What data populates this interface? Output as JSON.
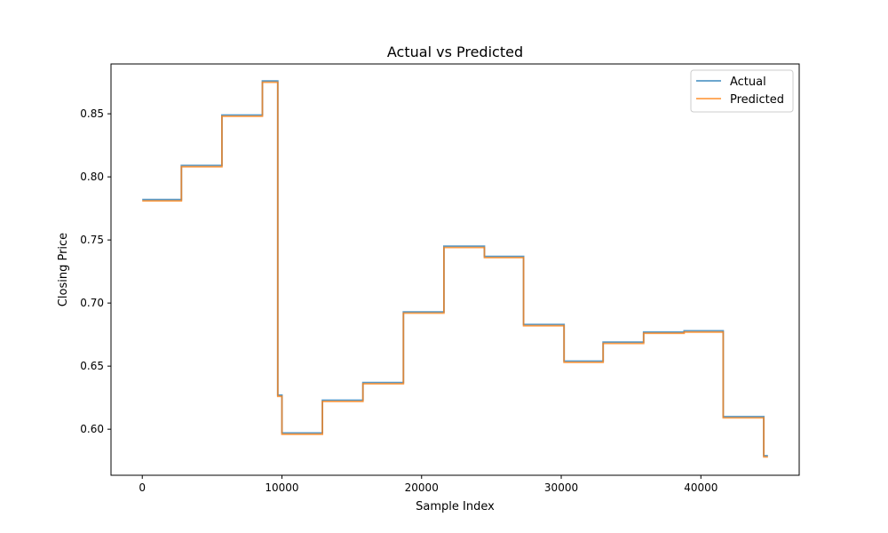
{
  "chart_data": {
    "type": "line",
    "title": "Actual vs Predicted",
    "xlabel": "Sample Index",
    "ylabel": "Closing Price",
    "xlim": [
      -2240,
      47040
    ],
    "ylim": [
      0.5635,
      0.8895
    ],
    "xticks": [
      0,
      10000,
      20000,
      30000,
      40000
    ],
    "xtick_labels": [
      "0",
      "10000",
      "20000",
      "30000",
      "40000"
    ],
    "yticks": [
      0.6,
      0.65,
      0.7,
      0.75,
      0.8,
      0.85
    ],
    "ytick_labels": [
      "0.60",
      "0.65",
      "0.70",
      "0.75",
      "0.80",
      "0.85"
    ],
    "grid": false,
    "legend_position": "top-right",
    "series": [
      {
        "name": "Actual",
        "color": "#1f77b4",
        "x": [
          0,
          2800,
          2800,
          5700,
          5700,
          8600,
          8600,
          9700,
          9700,
          10000,
          10000,
          12900,
          12900,
          15800,
          15800,
          18700,
          18700,
          21600,
          21600,
          24500,
          24500,
          27300,
          27300,
          30200,
          30200,
          33000,
          33000,
          35900,
          35900,
          38800,
          38800,
          41600,
          41600,
          44500,
          44500,
          44800
        ],
        "y": [
          0.782,
          0.782,
          0.809,
          0.809,
          0.849,
          0.849,
          0.876,
          0.876,
          0.627,
          0.627,
          0.597,
          0.597,
          0.623,
          0.623,
          0.637,
          0.637,
          0.693,
          0.693,
          0.745,
          0.745,
          0.737,
          0.737,
          0.683,
          0.683,
          0.654,
          0.654,
          0.669,
          0.669,
          0.677,
          0.677,
          0.678,
          0.678,
          0.61,
          0.61,
          0.579,
          0.579
        ]
      },
      {
        "name": "Predicted",
        "color": "#ff7f0e",
        "x": [
          0,
          2800,
          2800,
          5700,
          5700,
          8600,
          8600,
          9700,
          9700,
          10000,
          10000,
          12900,
          12900,
          15800,
          15800,
          18700,
          18700,
          21600,
          21600,
          24500,
          24500,
          27300,
          27300,
          30200,
          30200,
          33000,
          33000,
          35900,
          35900,
          38800,
          38800,
          41600,
          41600,
          44500,
          44500,
          44800
        ],
        "y": [
          0.781,
          0.781,
          0.808,
          0.808,
          0.848,
          0.848,
          0.875,
          0.875,
          0.626,
          0.626,
          0.596,
          0.596,
          0.622,
          0.622,
          0.636,
          0.636,
          0.692,
          0.692,
          0.744,
          0.744,
          0.736,
          0.736,
          0.682,
          0.682,
          0.653,
          0.653,
          0.668,
          0.668,
          0.676,
          0.676,
          0.677,
          0.677,
          0.609,
          0.609,
          0.578,
          0.578
        ]
      }
    ]
  }
}
